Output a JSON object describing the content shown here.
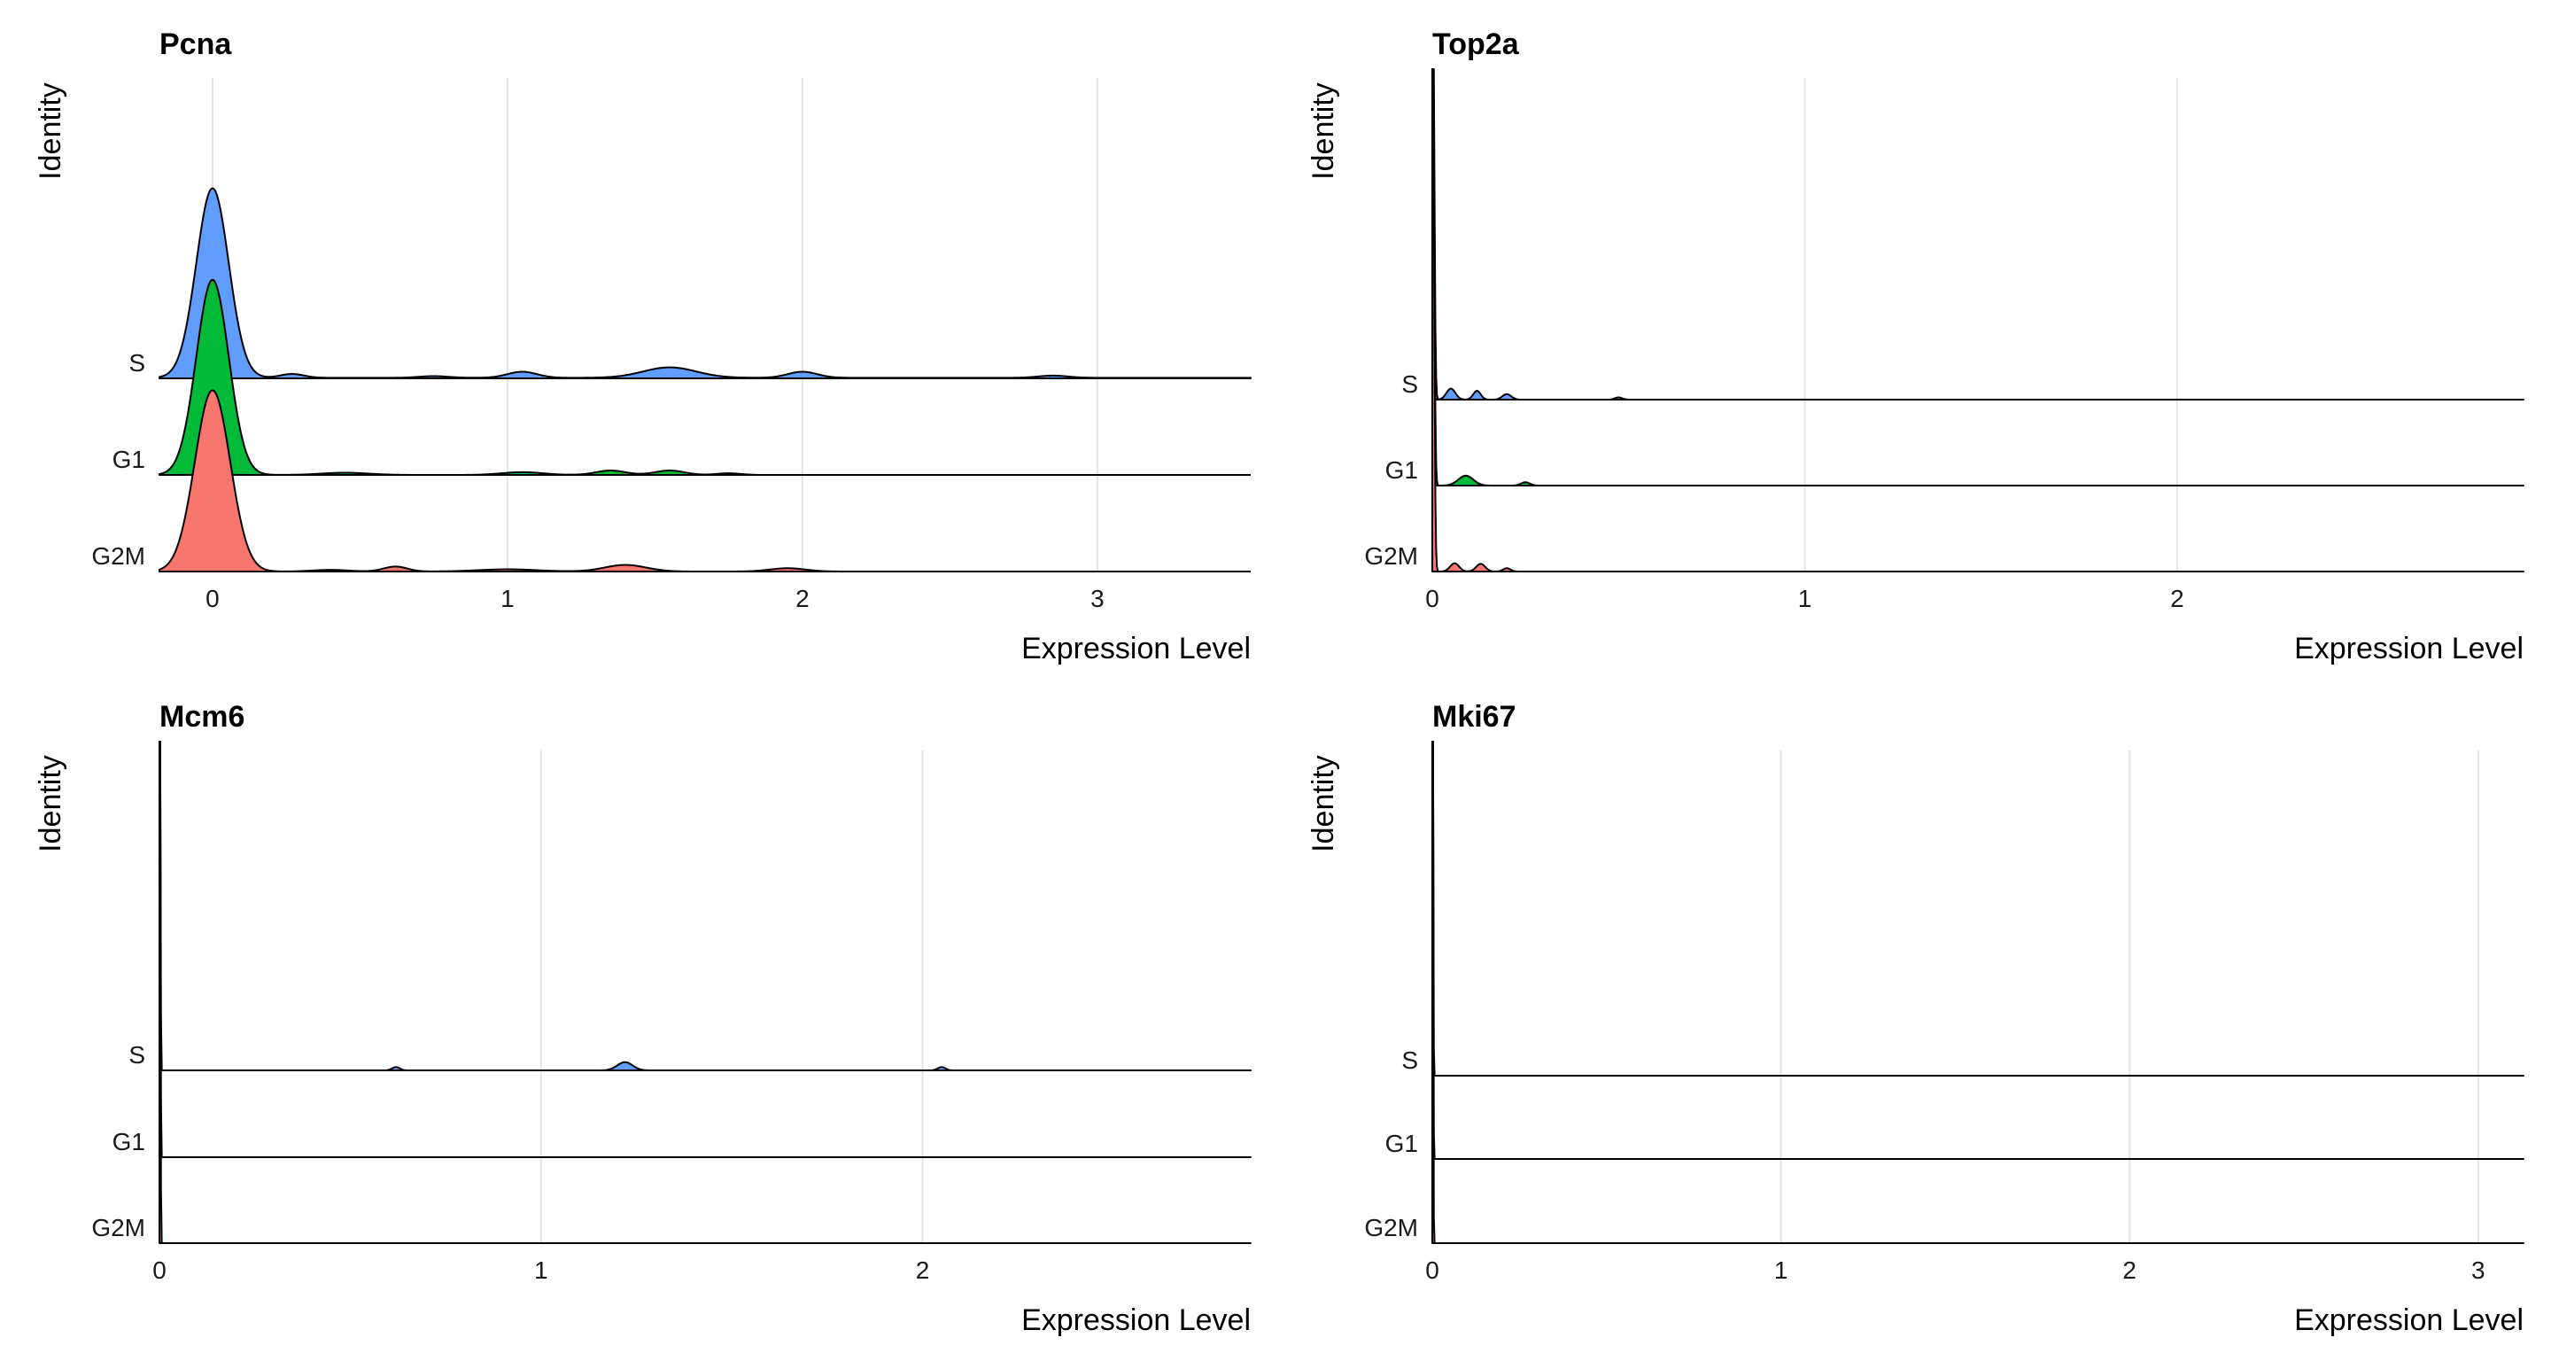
{
  "chart_data": [
    {
      "type": "ridgeline",
      "title": "Pcna",
      "xlabel": "Expression Level",
      "ylabel": "Identity",
      "xlim": [
        -0.18,
        3.52
      ],
      "xticks": [
        0,
        1,
        2,
        3
      ],
      "categories": [
        "S",
        "G1",
        "G2M"
      ],
      "colors": {
        "S": "#619cff",
        "G1": "#00ba38",
        "G2M": "#f8766d"
      },
      "grid": true,
      "series": [
        {
          "name": "S",
          "x_max": 3.52,
          "baseline_density": 0.01,
          "peaks": [
            [
              0,
              3.45,
              0.055
            ],
            [
              0.27,
              0.07,
              0.04
            ],
            [
              0.75,
              0.03,
              0.05
            ],
            [
              1.05,
              0.11,
              0.05
            ],
            [
              1.55,
              0.19,
              0.09
            ],
            [
              2.0,
              0.11,
              0.05
            ],
            [
              2.85,
              0.04,
              0.05
            ]
          ]
        },
        {
          "name": "G1",
          "x_max": 1.85,
          "baseline_density": 0.0,
          "peaks": [
            [
              0,
              3.55,
              0.055
            ],
            [
              0.45,
              0.04,
              0.08
            ],
            [
              1.05,
              0.05,
              0.07
            ],
            [
              1.35,
              0.08,
              0.05
            ],
            [
              1.55,
              0.08,
              0.05
            ],
            [
              1.75,
              0.03,
              0.04
            ]
          ]
        },
        {
          "name": "G2M",
          "x_max": 2.25,
          "baseline_density": 0.0,
          "peaks": [
            [
              0,
              3.3,
              0.06
            ],
            [
              0.4,
              0.03,
              0.06
            ],
            [
              0.62,
              0.09,
              0.04
            ],
            [
              1.0,
              0.04,
              0.1
            ],
            [
              1.4,
              0.12,
              0.07
            ],
            [
              1.95,
              0.06,
              0.06
            ]
          ]
        }
      ]
    },
    {
      "type": "ridgeline",
      "title": "Top2a",
      "xlabel": "Expression Level",
      "ylabel": "Identity",
      "xlim": [
        0,
        2.93
      ],
      "xticks": [
        0,
        1,
        2
      ],
      "categories": [
        "S",
        "G1",
        "G2M"
      ],
      "colors": {
        "S": "#619cff",
        "G1": "#00ba38",
        "G2M": "#f8766d"
      },
      "grid": true,
      "series": [
        {
          "name": "S",
          "x_max": 2.93,
          "baseline_density": 0.0,
          "peaks": [
            [
              0,
              12.0,
              0.004
            ],
            [
              0.05,
              0.2,
              0.012
            ],
            [
              0.12,
              0.16,
              0.01
            ],
            [
              0.2,
              0.1,
              0.012
            ],
            [
              0.5,
              0.04,
              0.01
            ]
          ]
        },
        {
          "name": "G1",
          "x_max": 2.93,
          "baseline_density": 0.0,
          "peaks": [
            [
              0,
              12.0,
              0.004
            ],
            [
              0.09,
              0.18,
              0.02
            ],
            [
              0.25,
              0.06,
              0.012
            ]
          ]
        },
        {
          "name": "G2M",
          "x_max": 2.93,
          "baseline_density": 0.0,
          "peaks": [
            [
              0,
              12.0,
              0.004
            ],
            [
              0.06,
              0.15,
              0.012
            ],
            [
              0.13,
              0.14,
              0.012
            ],
            [
              0.2,
              0.06,
              0.01
            ]
          ]
        }
      ]
    },
    {
      "type": "ridgeline",
      "title": "Mcm6",
      "xlabel": "Expression Level",
      "ylabel": "Identity",
      "xlim": [
        0,
        2.86
      ],
      "xticks": [
        0,
        1,
        2
      ],
      "categories": [
        "S",
        "G1",
        "G2M"
      ],
      "colors": {
        "S": "#619cff",
        "G1": "#00ba38",
        "G2M": "#f8766d"
      },
      "grid": true,
      "series": [
        {
          "name": "S",
          "x_max": 2.86,
          "baseline_density": 0.0,
          "peaks": [
            [
              0,
              40.0,
              0.0015
            ],
            [
              1.22,
              0.15,
              0.02
            ],
            [
              0.62,
              0.06,
              0.01
            ],
            [
              2.05,
              0.06,
              0.01
            ]
          ]
        },
        {
          "name": "G1",
          "x_max": 2.86,
          "baseline_density": 0.0,
          "peaks": [
            [
              0,
              40.0,
              0.0015
            ]
          ]
        },
        {
          "name": "G2M",
          "x_max": 2.86,
          "baseline_density": 0.0,
          "peaks": [
            [
              0,
              40.0,
              0.0015
            ]
          ]
        }
      ]
    },
    {
      "type": "ridgeline",
      "title": "Mki67",
      "xlabel": "Expression Level",
      "ylabel": "Identity",
      "xlim": [
        0,
        3.13
      ],
      "xticks": [
        0,
        1,
        2,
        3
      ],
      "categories": [
        "S",
        "G1",
        "G2M"
      ],
      "colors": {
        "S": "#619cff",
        "G1": "#00ba38",
        "G2M": "#f8766d"
      },
      "grid": true,
      "series": [
        {
          "name": "S",
          "x_max": 3.13,
          "baseline_density": 0.0,
          "peaks": [
            [
              0,
              40.0,
              0.0015
            ]
          ]
        },
        {
          "name": "G1",
          "x_max": 3.13,
          "baseline_density": 0.0,
          "peaks": [
            [
              0,
              40.0,
              0.0015
            ]
          ]
        },
        {
          "name": "G2M",
          "x_max": 3.13,
          "baseline_density": 0.0,
          "peaks": [
            [
              0,
              40.0,
              0.0015
            ]
          ]
        }
      ]
    }
  ]
}
